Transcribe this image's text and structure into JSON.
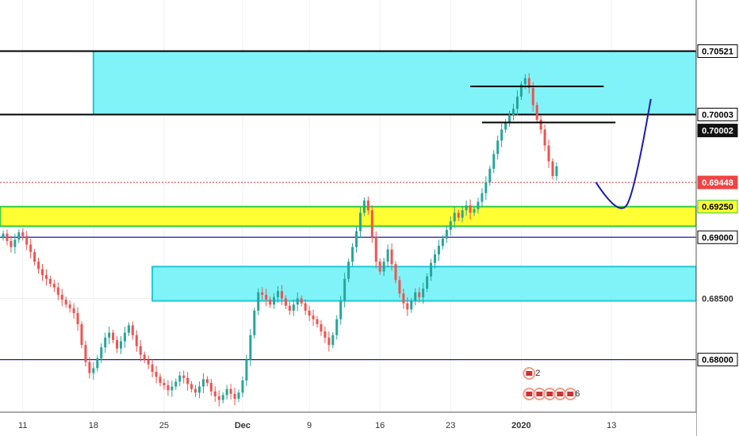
{
  "chart_data": {
    "type": "candlestick",
    "instrument_note": "",
    "y_axis": {
      "ylim": [
        0.6757,
        0.709
      ],
      "labels": [
        {
          "value": 0.70521,
          "text": "0.70521",
          "style": "boxed-white"
        },
        {
          "value": 0.70003,
          "text": "0.70003",
          "style": "boxed-white"
        },
        {
          "value": 0.70002,
          "text": "0.70002",
          "style": "dark"
        },
        {
          "value": 0.69448,
          "text": "0.69448",
          "style": "price"
        },
        {
          "value": 0.6925,
          "text": "0.69250",
          "style": "yellow"
        },
        {
          "value": 0.69,
          "text": "0.69000",
          "style": "boxed-white"
        },
        {
          "value": 0.685,
          "text": "0.68500",
          "style": "plain"
        },
        {
          "value": 0.68,
          "text": "0.68000",
          "style": "boxed-white"
        }
      ]
    },
    "x_axis": {
      "ticks": [
        {
          "text": "11",
          "index": 5
        },
        {
          "text": "18",
          "index": 23
        },
        {
          "text": "25",
          "index": 41
        },
        {
          "text": "Dec",
          "index": 61,
          "bold": true
        },
        {
          "text": "9",
          "index": 78
        },
        {
          "text": "16",
          "index": 96
        },
        {
          "text": "23",
          "index": 114
        },
        {
          "text": "2020",
          "index": 132,
          "bold": true
        },
        {
          "text": "13",
          "index": 155
        }
      ],
      "last_index": 172
    },
    "candles_ohlc_open": 0.69,
    "candles_close": [
      0.6903,
      0.6897,
      0.6892,
      0.6898,
      0.6904,
      0.6901,
      0.6894,
      0.6888,
      0.688,
      0.6874,
      0.6869,
      0.6866,
      0.6862,
      0.6859,
      0.6853,
      0.6849,
      0.6845,
      0.6842,
      0.6838,
      0.6829,
      0.6812,
      0.6798,
      0.6789,
      0.6793,
      0.6801,
      0.681,
      0.6818,
      0.6822,
      0.6816,
      0.6809,
      0.6815,
      0.6822,
      0.6828,
      0.682,
      0.6811,
      0.6804,
      0.68,
      0.6796,
      0.679,
      0.6786,
      0.6781,
      0.6779,
      0.6775,
      0.6778,
      0.6782,
      0.6787,
      0.6785,
      0.678,
      0.6776,
      0.6773,
      0.6778,
      0.6784,
      0.6781,
      0.6774,
      0.677,
      0.6767,
      0.6771,
      0.6776,
      0.6772,
      0.6768,
      0.6773,
      0.6783,
      0.68,
      0.682,
      0.684,
      0.6855,
      0.6853,
      0.6849,
      0.6845,
      0.6851,
      0.6856,
      0.685,
      0.6844,
      0.684,
      0.6845,
      0.685,
      0.6846,
      0.684,
      0.6836,
      0.6833,
      0.6829,
      0.6823,
      0.6818,
      0.6812,
      0.682,
      0.6833,
      0.6848,
      0.6866,
      0.688,
      0.6892,
      0.6905,
      0.692,
      0.693,
      0.6922,
      0.69,
      0.688,
      0.6872,
      0.688,
      0.689,
      0.6878,
      0.6865,
      0.6854,
      0.6846,
      0.6841,
      0.6848,
      0.6855,
      0.6851,
      0.6858,
      0.6868,
      0.6879,
      0.6886,
      0.6893,
      0.6899,
      0.6906,
      0.6913,
      0.692,
      0.6916,
      0.6922,
      0.6926,
      0.692,
      0.6923,
      0.6929,
      0.6936,
      0.6945,
      0.6956,
      0.6968,
      0.6979,
      0.6988,
      0.6994,
      0.7,
      0.7005,
      0.7015,
      0.7025,
      0.703,
      0.7022,
      0.7008,
      0.6996,
      0.6988,
      0.6975,
      0.6962,
      0.695,
      0.6958
    ],
    "live_price": {
      "value": 0.69448,
      "color": "#e53935"
    },
    "levels": [
      {
        "value": 0.70521,
        "color": "#000000"
      },
      {
        "value": 0.70003,
        "color": "#000000"
      },
      {
        "value": 0.69,
        "color": "#1a1ab0"
      },
      {
        "value": 0.68,
        "color": "#1a1ab0"
      }
    ],
    "zones": [
      {
        "from": 0.70003,
        "to": 0.70521,
        "fill": "#7ff3f8",
        "border": "#1ec9d6",
        "start_index": 23
      },
      {
        "from": 0.6848,
        "to": 0.6876,
        "fill": "#7ff3f8",
        "border": "#1ec9d6",
        "start_index": 38
      },
      {
        "from": 0.6909,
        "to": 0.6925,
        "fill": "#ffff33",
        "border": "#2ecc40",
        "start_index": 0
      }
    ],
    "segments": [
      {
        "value": 0.70233,
        "from_index": 119,
        "to_index": 153
      },
      {
        "value": 0.69938,
        "from_index": 122,
        "to_index": 156
      }
    ],
    "projection": {
      "color": "#1a1ab0",
      "points": [
        [
          151,
          0.6945
        ],
        [
          157,
          0.6927
        ],
        [
          165,
          0.7013
        ]
      ]
    },
    "colors": {
      "up": "#26a69a",
      "down": "#ef5350"
    },
    "events": {
      "top": "2",
      "row": [
        "2",
        "2",
        "3",
        "3",
        "6"
      ]
    }
  }
}
